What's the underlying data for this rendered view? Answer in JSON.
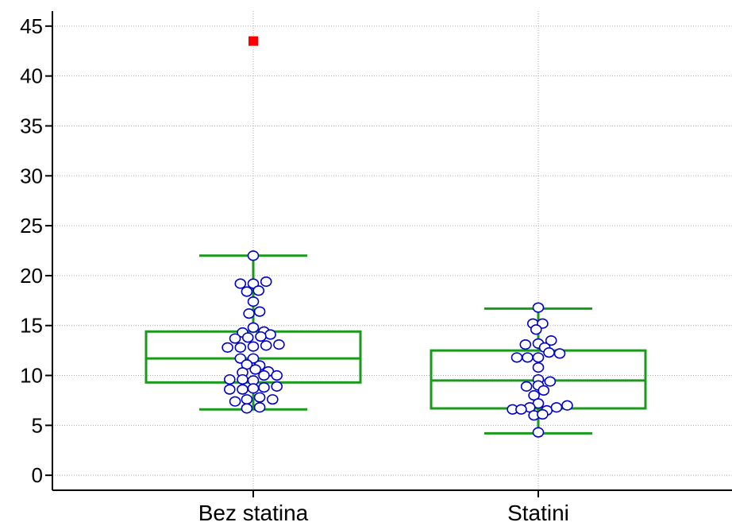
{
  "chart_data": {
    "type": "boxplot",
    "title": "",
    "xlabel": "",
    "ylabel": "",
    "ylim": [
      -1.5,
      46.5
    ],
    "yticks": [
      0,
      5,
      10,
      15,
      20,
      25,
      30,
      35,
      40,
      45
    ],
    "ytick_labels": [
      "0",
      "5",
      "10",
      "15",
      "20",
      "25",
      "30",
      "35",
      "40",
      "45"
    ],
    "grid": true,
    "categories": [
      "Bez statina",
      "Statini"
    ],
    "colors": {
      "box": "#1a9a1a",
      "point_stroke": "#0000cc",
      "point_fill": "#ffffff",
      "outlier": "#ff0000",
      "grid": "#aaaaaa",
      "axis": "#000000"
    },
    "series": [
      {
        "category": "Bez statina",
        "whisker_low": 6.6,
        "q1": 9.3,
        "median": 11.7,
        "q3": 14.4,
        "whisker_high": 22.0,
        "outliers": [
          43.5
        ],
        "points": [
          [
            0.0,
            22.0
          ],
          [
            -0.12,
            19.2
          ],
          [
            0.0,
            19.2
          ],
          [
            0.12,
            19.4
          ],
          [
            -0.06,
            18.4
          ],
          [
            0.05,
            18.5
          ],
          [
            0.0,
            17.4
          ],
          [
            -0.04,
            16.2
          ],
          [
            0.06,
            16.4
          ],
          [
            0.0,
            14.8
          ],
          [
            -0.1,
            14.3
          ],
          [
            0.1,
            14.4
          ],
          [
            0.16,
            14.1
          ],
          [
            -0.17,
            13.7
          ],
          [
            -0.05,
            13.8
          ],
          [
            0.07,
            13.9
          ],
          [
            -0.24,
            12.8
          ],
          [
            -0.12,
            12.8
          ],
          [
            0.0,
            12.9
          ],
          [
            0.12,
            13.0
          ],
          [
            0.24,
            13.1
          ],
          [
            -0.12,
            11.7
          ],
          [
            0.0,
            11.7
          ],
          [
            -0.06,
            11.1
          ],
          [
            0.06,
            11.0
          ],
          [
            -0.1,
            10.3
          ],
          [
            0.02,
            10.6
          ],
          [
            0.14,
            10.4
          ],
          [
            -0.22,
            9.6
          ],
          [
            -0.1,
            9.6
          ],
          [
            0.0,
            9.5
          ],
          [
            0.1,
            10.0
          ],
          [
            0.22,
            10.0
          ],
          [
            -0.22,
            8.6
          ],
          [
            -0.1,
            8.6
          ],
          [
            0.0,
            8.7
          ],
          [
            0.1,
            8.8
          ],
          [
            0.22,
            8.9
          ],
          [
            -0.17,
            7.4
          ],
          [
            -0.06,
            7.6
          ],
          [
            0.06,
            7.8
          ],
          [
            0.18,
            7.6
          ],
          [
            -0.06,
            6.7
          ],
          [
            0.06,
            6.8
          ]
        ]
      },
      {
        "category": "Statini",
        "whisker_low": 4.2,
        "q1": 6.7,
        "median": 9.5,
        "q3": 12.5,
        "whisker_high": 16.7,
        "outliers": [],
        "points": [
          [
            0.0,
            16.8
          ],
          [
            -0.05,
            15.2
          ],
          [
            0.04,
            15.2
          ],
          [
            -0.02,
            14.6
          ],
          [
            0.12,
            13.5
          ],
          [
            -0.12,
            13.1
          ],
          [
            0.0,
            13.2
          ],
          [
            0.06,
            12.8
          ],
          [
            0.1,
            12.3
          ],
          [
            0.2,
            12.2
          ],
          [
            -0.2,
            11.8
          ],
          [
            -0.1,
            11.8
          ],
          [
            0.0,
            11.8
          ],
          [
            0.0,
            10.8
          ],
          [
            0.0,
            9.6
          ],
          [
            0.11,
            9.4
          ],
          [
            -0.11,
            8.9
          ],
          [
            0.0,
            9.0
          ],
          [
            0.05,
            8.5
          ],
          [
            -0.04,
            8.0
          ],
          [
            0.0,
            7.2
          ],
          [
            -0.08,
            6.8
          ],
          [
            -0.24,
            6.6
          ],
          [
            -0.16,
            6.6
          ],
          [
            0.08,
            6.5
          ],
          [
            0.17,
            6.8
          ],
          [
            0.27,
            7.0
          ],
          [
            -0.04,
            6.0
          ],
          [
            0.04,
            6.1
          ],
          [
            0.0,
            4.3
          ]
        ]
      }
    ]
  }
}
